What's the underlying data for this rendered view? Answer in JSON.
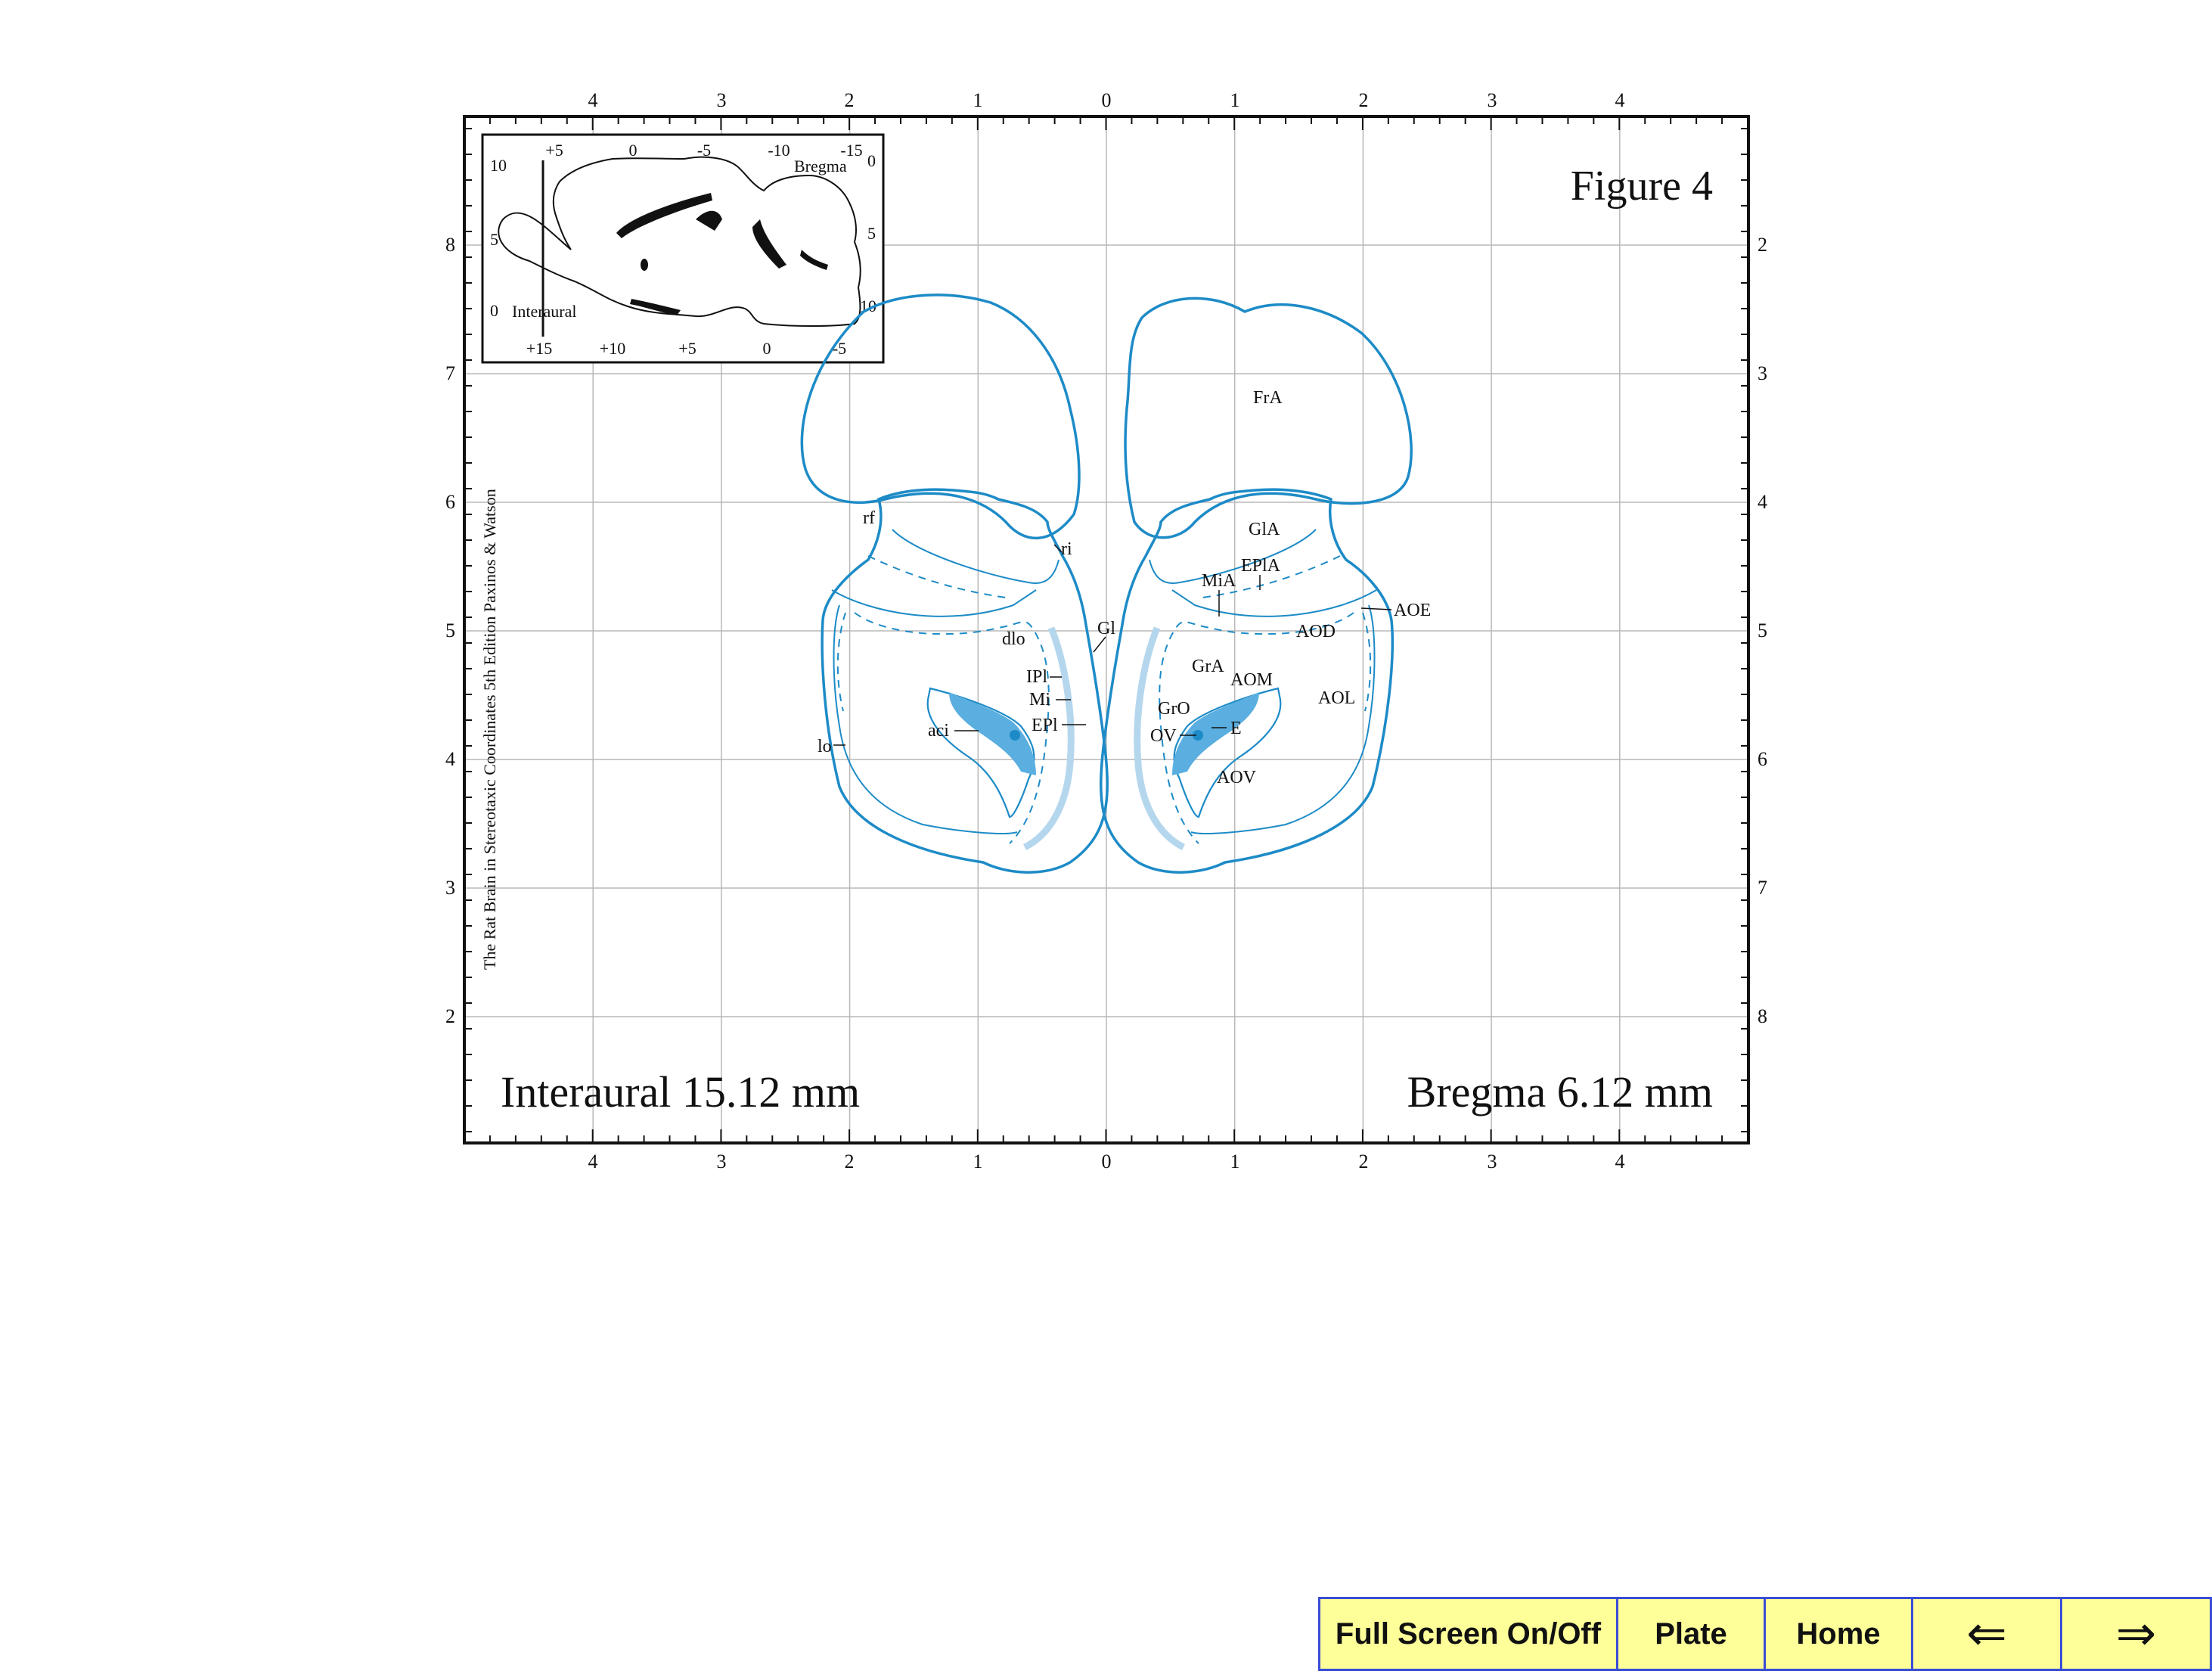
{
  "figure": {
    "title": "Figure 4",
    "interaural": "Interaural 15.12 mm",
    "bregma": "Bregma 6.12 mm",
    "vertical_credit": "The Rat Brain in Stereotaxic Coordinates  5th Edition  Paxinos & Watson"
  },
  "axes": {
    "top_ticks": [
      "4",
      "3",
      "2",
      "1",
      "0",
      "1",
      "2",
      "3",
      "4"
    ],
    "bottom_ticks": [
      "4",
      "3",
      "2",
      "1",
      "0",
      "1",
      "2",
      "3",
      "4"
    ],
    "left_ticks": [
      "8",
      "7",
      "6",
      "5",
      "4",
      "3",
      "2"
    ],
    "right_ticks": [
      "2",
      "3",
      "4",
      "5",
      "6",
      "7",
      "8"
    ]
  },
  "inset": {
    "top_ticks": [
      "+5",
      "0",
      "-5",
      "-10",
      "-15"
    ],
    "bottom_ticks": [
      "+15",
      "+10",
      "+5",
      "0",
      "-5"
    ],
    "left_ticks": [
      "10",
      "5",
      "0"
    ],
    "right_ticks": [
      "0",
      "5",
      "10"
    ],
    "bregma_label": "Bregma",
    "interaural_label": "Interaural"
  },
  "labels": {
    "FrA": "FrA",
    "GlA": "GlA",
    "EPlA": "EPlA",
    "MiA": "MiA",
    "AOE": "AOE",
    "AOD": "AOD",
    "GrA": "GrA",
    "AOM": "AOM",
    "AOL": "AOL",
    "GrO": "GrO",
    "OV": "OV",
    "E": "E",
    "AOV": "AOV",
    "rf": "rf",
    "ri": "ri",
    "Gl": "Gl",
    "dlo": "dlo",
    "IPl": "IPl",
    "Mi": "Mi",
    "EPl": "EPl",
    "aci": "aci",
    "lo": "lo"
  },
  "colors": {
    "outline": "#1d8bc7",
    "fill_dark": "#5aaee0",
    "fill_light": "#b5d7ee",
    "grid": "#b8b8b8",
    "nav_bg": "#ffff99",
    "nav_border": "#3a4ed6"
  },
  "nav": {
    "fullscreen": "Full Screen On/Off",
    "plate": "Plate",
    "home": "Home",
    "prev": "⇐",
    "next": "⇒"
  }
}
